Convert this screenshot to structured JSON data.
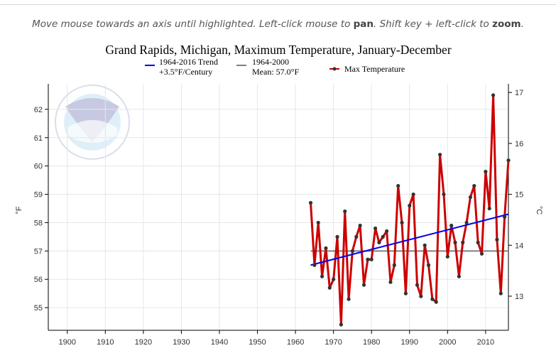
{
  "instructions": {
    "part1": "Move mouse towards an axis until highlighted. Left-click mouse to",
    "pan": "pan",
    "part2": ". Shift key + left-click to",
    "zoom": "zoom",
    "part3": "."
  },
  "colors": {
    "trend": "#0000ee",
    "mean": "#808080",
    "series": "#cc0000",
    "marker": "#333333",
    "grid": "#e6e6e6"
  },
  "chart_data": {
    "type": "line",
    "title": "Grand Rapids, Michigan, Maximum Temperature, January-December",
    "ylabel": "°F",
    "y2label": "°C",
    "xlim": [
      1895,
      2016
    ],
    "ylim": [
      54.2,
      62.9
    ],
    "y2lim": [
      12.33,
      17.17
    ],
    "xticks": [
      1900,
      1910,
      1920,
      1930,
      1940,
      1950,
      1960,
      1970,
      1980,
      1990,
      2000,
      2010
    ],
    "yticks": [
      55,
      56,
      57,
      58,
      59,
      60,
      61,
      62
    ],
    "y2ticks": [
      13,
      14,
      15,
      16,
      17
    ],
    "grid": true,
    "legend": [
      {
        "key": "trend",
        "line1": "1964-2016 Trend",
        "line2": "+3.5°F/Century"
      },
      {
        "key": "mean",
        "line1": "1964-2000",
        "line2": "Mean: 57.0°F"
      },
      {
        "key": "series",
        "line1": "Max Temperature"
      }
    ],
    "trend": {
      "x": [
        1964,
        2016
      ],
      "y": [
        56.5,
        58.3
      ]
    },
    "mean": {
      "x": [
        1964,
        2016
      ],
      "y": [
        57.0,
        57.0
      ]
    },
    "series": [
      {
        "name": "Max Temperature",
        "x": [
          1964,
          1965,
          1966,
          1967,
          1968,
          1969,
          1970,
          1971,
          1972,
          1973,
          1974,
          1975,
          1976,
          1977,
          1978,
          1979,
          1980,
          1981,
          1982,
          1983,
          1984,
          1985,
          1986,
          1987,
          1988,
          1989,
          1990,
          1991,
          1992,
          1993,
          1994,
          1995,
          1996,
          1997,
          1998,
          1999,
          2000,
          2001,
          2002,
          2003,
          2004,
          2005,
          2006,
          2007,
          2008,
          2009,
          2010,
          2011,
          2012,
          2013,
          2014,
          2015,
          2016
        ],
        "y": [
          58.7,
          56.5,
          58.0,
          56.1,
          57.1,
          55.7,
          56.0,
          57.5,
          54.4,
          58.4,
          55.3,
          57.0,
          57.5,
          57.9,
          55.8,
          56.7,
          56.7,
          57.8,
          57.3,
          57.5,
          57.7,
          55.9,
          56.5,
          59.3,
          58.0,
          55.5,
          58.6,
          59.0,
          55.8,
          55.4,
          57.2,
          56.5,
          55.3,
          55.2,
          60.4,
          59.0,
          56.8,
          57.9,
          57.3,
          56.1,
          57.3,
          58.0,
          58.9,
          59.3,
          57.3,
          56.9,
          59.8,
          58.5,
          62.5,
          57.4,
          55.5,
          58.2,
          60.2
        ]
      }
    ]
  }
}
